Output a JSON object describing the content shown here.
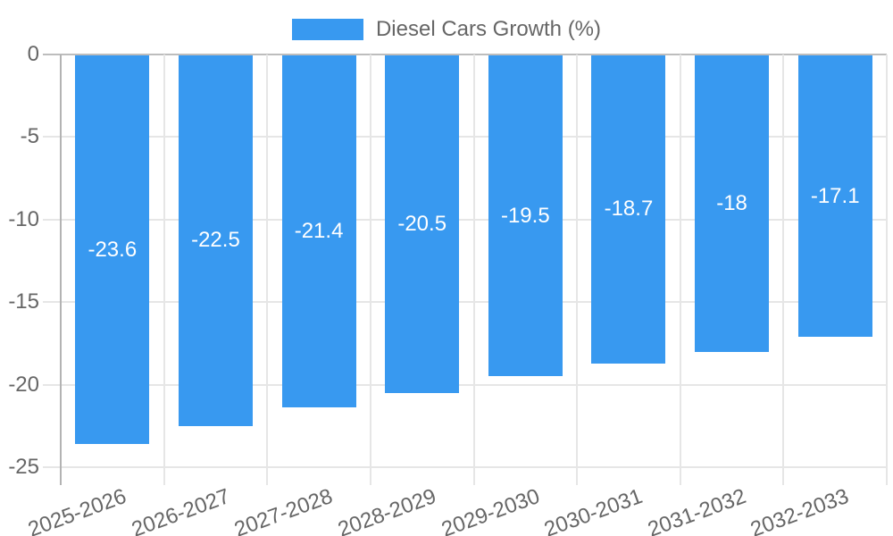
{
  "chart_data": {
    "type": "bar",
    "title": "",
    "legend": {
      "label": "Diesel Cars Growth (%)",
      "position": "top"
    },
    "categories": [
      "2025-2026",
      "2026-2027",
      "2027-2028",
      "2028-2029",
      "2029-2030",
      "2030-2031",
      "2031-2032",
      "2032-2033"
    ],
    "series": [
      {
        "name": "Diesel Cars Growth (%)",
        "values": [
          -23.6,
          -22.5,
          -21.4,
          -20.5,
          -19.5,
          -18.7,
          -18,
          -17.1
        ]
      }
    ],
    "bar_labels": [
      "-23.6",
      "-22.5",
      "-21.4",
      "-20.5",
      "-19.5",
      "-18.7",
      "-18",
      "-17.1"
    ],
    "xlabel": "",
    "ylabel": "",
    "ylim": [
      -25,
      0
    ],
    "yticks": [
      0,
      -5,
      -10,
      -15,
      -20,
      -25
    ],
    "ytick_labels": [
      "0",
      "-5",
      "-10",
      "-15",
      "-20",
      "-25"
    ],
    "grid": "on",
    "colors": {
      "bar": "#3899f0",
      "grid_line": "#e6e6e6",
      "zero_line": "#bdbdbd",
      "axis_line": "#b3b3b3",
      "axis_text": "#666666",
      "legend_text": "#666666",
      "bar_label_text": "#ffffff",
      "background": "#ffffff"
    }
  }
}
